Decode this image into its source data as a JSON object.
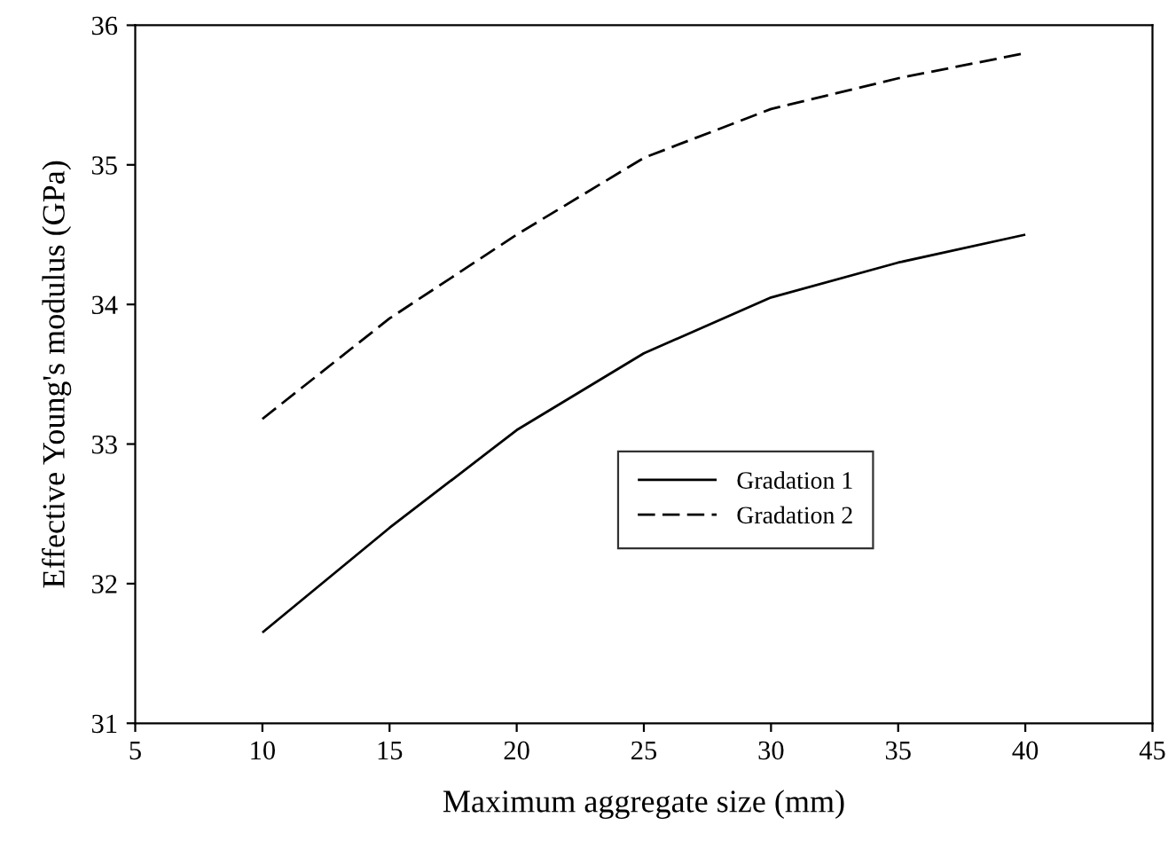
{
  "chart_data": {
    "type": "line",
    "xlabel": "Maximum aggregate size (mm)",
    "ylabel": "Effective Young's modulus (GPa)",
    "x": [
      10,
      15,
      20,
      25,
      30,
      35,
      40
    ],
    "series": [
      {
        "name": "Gradation 1",
        "color": "#000000",
        "line_style": "solid",
        "values": [
          31.65,
          32.4,
          33.1,
          33.65,
          34.05,
          34.3,
          34.5
        ]
      },
      {
        "name": "Gradation 2",
        "color": "#000000",
        "line_style": "dashed",
        "values": [
          33.18,
          33.9,
          34.5,
          35.05,
          35.4,
          35.62,
          35.8
        ]
      }
    ],
    "xlim": [
      5,
      45
    ],
    "xticks": [
      5,
      10,
      15,
      20,
      25,
      30,
      35,
      40,
      45
    ],
    "ylim": [
      31,
      36
    ],
    "yticks": [
      31,
      32,
      33,
      34,
      35,
      36
    ],
    "grid": false,
    "legend": "bottom right",
    "marker": "none"
  }
}
